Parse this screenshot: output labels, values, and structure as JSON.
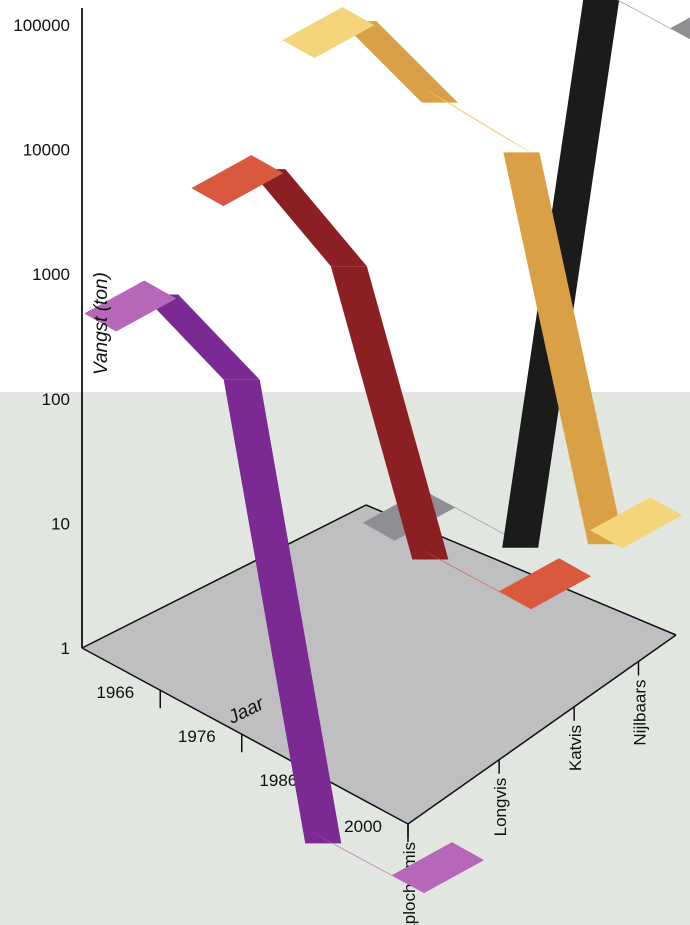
{
  "chart_data": {
    "type": "3d-ribbon-line",
    "title": "",
    "ylabel": "Vangst (ton)",
    "xlabel": "Jaar",
    "y_scale": "log",
    "ylim": [
      1,
      100000
    ],
    "y_ticks": [
      "100000",
      "10000",
      "1000",
      "100",
      "10",
      "1"
    ],
    "years": [
      "1966",
      "1976",
      "1986",
      "2000"
    ],
    "species": [
      "Haplochromis",
      "Longvis",
      "Katvis",
      "Nijlbaars"
    ],
    "series": [
      {
        "name": "Haplochromis",
        "values": [
          1500,
          700,
          0.3,
          0.3
        ],
        "color": "#7b2a93",
        "flat_color": "#b667b8"
      },
      {
        "name": "Longvis",
        "values": [
          4000,
          1500,
          15,
          15
        ],
        "color": "#8b1f23",
        "flat_color": "#d8593d"
      },
      {
        "name": "Katvis",
        "values": [
          20000,
          10000,
          9000,
          15
        ],
        "color": "#d9a046",
        "flat_color": "#f5d57c"
      },
      {
        "name": "Nijlbaars",
        "values": [
          1,
          1,
          60000,
          60000
        ],
        "color": "#1b1b1b",
        "flat_color": "#8f8f93"
      }
    ],
    "colors": {
      "floor": "#bfbfc1",
      "lower_background": "#e1e7e0",
      "upper_background": "#ffffff"
    }
  }
}
